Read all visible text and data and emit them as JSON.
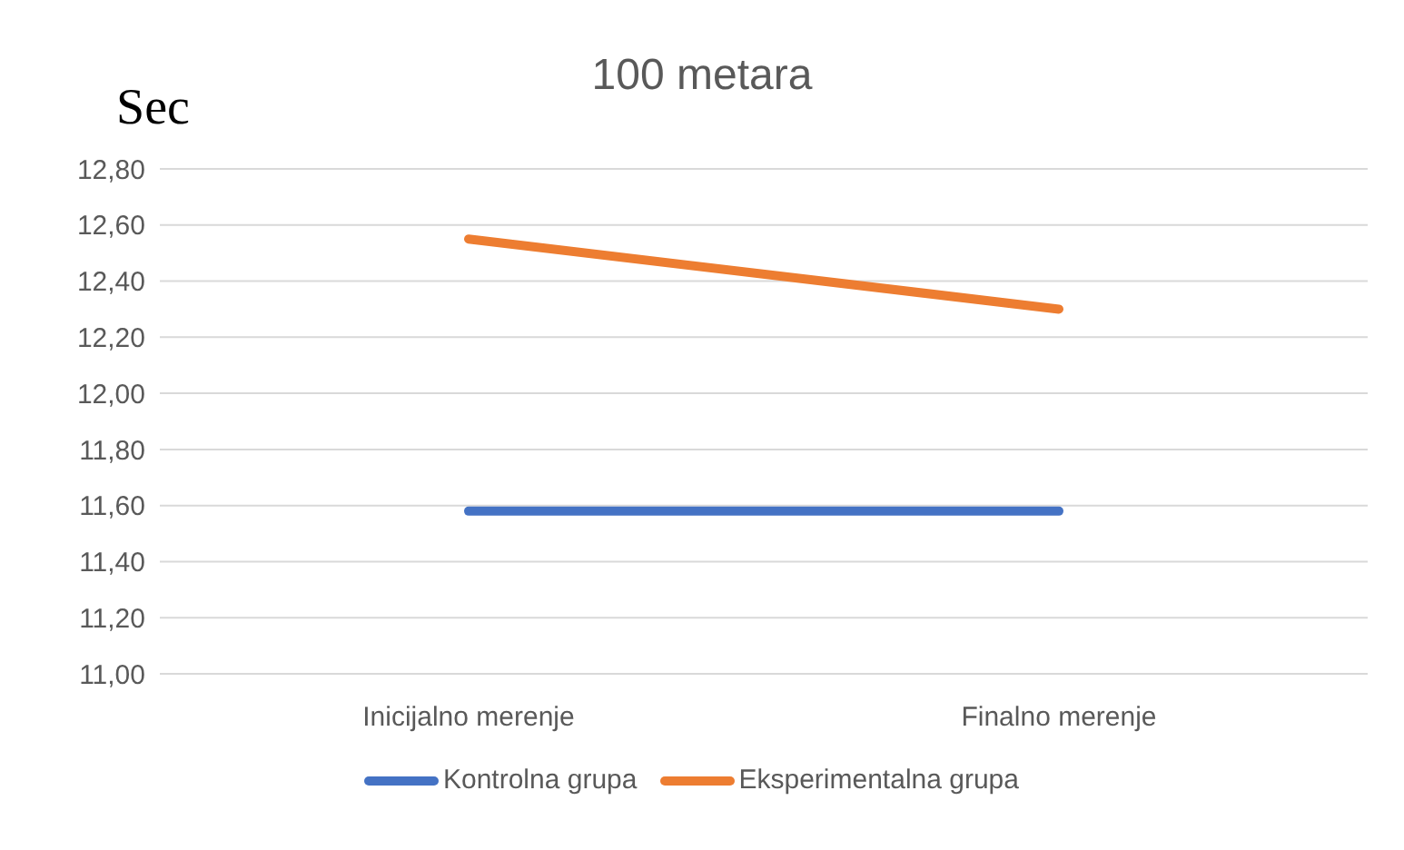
{
  "chart_data": {
    "type": "line",
    "title": "100 metara",
    "ylabel": "Sec",
    "categories": [
      "Inicijalno merenje",
      "Finalno merenje"
    ],
    "series": [
      {
        "name": "Kontrolna grupa",
        "color": "#4472c4",
        "values": [
          11.58,
          11.58
        ]
      },
      {
        "name": "Eksperimentalna grupa",
        "color": "#ed7d31",
        "values": [
          12.55,
          12.3
        ]
      }
    ],
    "ylim": [
      11,
      12.8
    ],
    "yticks": [
      {
        "value": 11,
        "label": "11,00"
      },
      {
        "value": 11.2,
        "label": "11,20"
      },
      {
        "value": 11.4,
        "label": "11,40"
      },
      {
        "value": 11.6,
        "label": "11,60"
      },
      {
        "value": 11.8,
        "label": "11,80"
      },
      {
        "value": 12,
        "label": "12,00"
      },
      {
        "value": 12.2,
        "label": "12,20"
      },
      {
        "value": 12.4,
        "label": "12,40"
      },
      {
        "value": 12.6,
        "label": "12,60"
      },
      {
        "value": 12.8,
        "label": "12,80"
      }
    ],
    "grid": "y",
    "legend": "bottom",
    "marker": "none",
    "line_style": "solid"
  }
}
